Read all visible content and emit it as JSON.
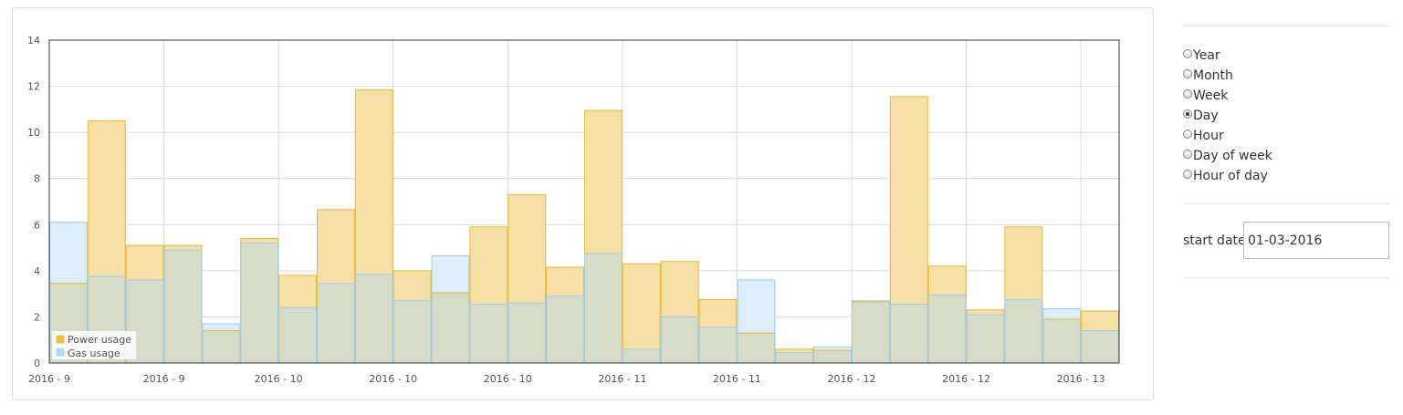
{
  "chart_data": {
    "type": "bar",
    "categories": [
      "2016 - 9",
      "",
      "",
      "2016 - 9",
      "",
      "",
      "2016 - 10",
      "",
      "",
      "2016 - 10",
      "",
      "",
      "2016 - 10",
      "",
      "",
      "2016 - 11",
      "",
      "",
      "2016 - 11",
      "",
      "",
      "2016 - 12",
      "",
      "",
      "2016 - 12",
      "",
      "",
      "2016 - 13"
    ],
    "x_tick_labels": [
      "2016 - 9",
      "2016 - 9",
      "2016 - 10",
      "2016 - 10",
      "2016 - 10",
      "2016 - 11",
      "2016 - 11",
      "2016 - 12",
      "2016 - 12",
      "2016 - 13"
    ],
    "series": [
      {
        "name": "Power usage",
        "color": "#f0c040",
        "values": [
          3.45,
          10.5,
          5.1,
          5.1,
          1.4,
          5.4,
          3.8,
          6.65,
          11.85,
          4.0,
          3.05,
          5.9,
          7.3,
          4.15,
          10.95,
          4.3,
          4.4,
          2.75,
          1.3,
          0.6,
          0.55,
          2.65,
          11.55,
          4.2,
          2.3,
          5.9,
          1.9,
          2.25
        ]
      },
      {
        "name": "Gas usage",
        "color": "#a8d0f0",
        "values": [
          6.1,
          3.75,
          3.6,
          4.9,
          1.7,
          5.2,
          2.4,
          3.45,
          3.85,
          2.7,
          4.65,
          2.55,
          2.6,
          2.9,
          4.75,
          0.6,
          2.0,
          1.55,
          3.6,
          0.45,
          0.7,
          2.7,
          2.55,
          2.95,
          2.1,
          2.75,
          2.35,
          1.4
        ]
      }
    ],
    "ylim": [
      0,
      14
    ],
    "yticks": [
      0,
      2,
      4,
      6,
      8,
      10,
      12,
      14
    ],
    "grid": true,
    "legend": "bottom-left"
  },
  "controls": {
    "radio_options": [
      {
        "label": "Year",
        "checked": false
      },
      {
        "label": "Month",
        "checked": false
      },
      {
        "label": "Week",
        "checked": false
      },
      {
        "label": "Day",
        "checked": true
      },
      {
        "label": "Hour",
        "checked": false
      },
      {
        "label": "Day of week",
        "checked": false
      },
      {
        "label": "Hour of day",
        "checked": false
      }
    ],
    "start_date_label": "start date",
    "start_date_value": "01-03-2016"
  }
}
